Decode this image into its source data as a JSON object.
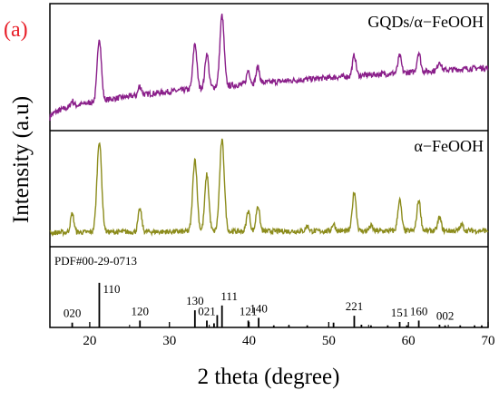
{
  "chart_data": {
    "type": "line",
    "panel_label": "(a)",
    "xlabel": "2 theta (degree)",
    "ylabel": "Intensity (a.u)",
    "xlim": [
      15,
      70
    ],
    "x_ticks": [
      20,
      30,
      40,
      50,
      60,
      70
    ],
    "grid": false,
    "colors": {
      "panel_label": "#e8202a",
      "gqds_series": "#8a1f8a",
      "feooh_series": "#8c8c1c",
      "axes": "#000000"
    },
    "panels": [
      {
        "label": "GQDs/α−FeOOH",
        "series_color": "#8a1f8a",
        "baseline_start": 0.08,
        "baseline_end": 0.52,
        "peaks": [
          {
            "x": 17.8,
            "height": 0.05
          },
          {
            "x": 21.2,
            "height": 0.55
          },
          {
            "x": 26.3,
            "height": 0.08
          },
          {
            "x": 33.2,
            "height": 0.4
          },
          {
            "x": 34.7,
            "height": 0.3
          },
          {
            "x": 36.6,
            "height": 0.62
          },
          {
            "x": 39.9,
            "height": 0.12
          },
          {
            "x": 41.1,
            "height": 0.14
          },
          {
            "x": 53.2,
            "height": 0.18
          },
          {
            "x": 58.9,
            "height": 0.15
          },
          {
            "x": 61.3,
            "height": 0.17
          },
          {
            "x": 63.9,
            "height": 0.08
          }
        ]
      },
      {
        "label": "α−FeOOH",
        "series_color": "#8c8c1c",
        "baseline_start": 0.1,
        "baseline_end": 0.12,
        "peaks": [
          {
            "x": 17.8,
            "height": 0.18
          },
          {
            "x": 21.2,
            "height": 0.88
          },
          {
            "x": 26.3,
            "height": 0.22
          },
          {
            "x": 33.2,
            "height": 0.7
          },
          {
            "x": 34.7,
            "height": 0.55
          },
          {
            "x": 36.6,
            "height": 0.88
          },
          {
            "x": 39.9,
            "height": 0.2
          },
          {
            "x": 41.1,
            "height": 0.25
          },
          {
            "x": 47.3,
            "height": 0.05
          },
          {
            "x": 50.6,
            "height": 0.07
          },
          {
            "x": 53.2,
            "height": 0.38
          },
          {
            "x": 55.3,
            "height": 0.05
          },
          {
            "x": 58.9,
            "height": 0.3
          },
          {
            "x": 61.3,
            "height": 0.3
          },
          {
            "x": 63.9,
            "height": 0.13
          },
          {
            "x": 66.7,
            "height": 0.06
          }
        ]
      }
    ],
    "reference": {
      "title": "PDF#00-29-0713",
      "lines": [
        {
          "x": 17.8,
          "height": 0.07
        },
        {
          "x": 21.2,
          "height": 0.65
        },
        {
          "x": 26.3,
          "height": 0.1
        },
        {
          "x": 33.2,
          "height": 0.25
        },
        {
          "x": 34.7,
          "height": 0.1
        },
        {
          "x": 35.6,
          "height": 0.06
        },
        {
          "x": 36.0,
          "height": 0.18
        },
        {
          "x": 36.6,
          "height": 0.32
        },
        {
          "x": 39.9,
          "height": 0.1
        },
        {
          "x": 41.2,
          "height": 0.14
        },
        {
          "x": 43.1,
          "height": 0.03
        },
        {
          "x": 45.0,
          "height": 0.03
        },
        {
          "x": 47.3,
          "height": 0.03
        },
        {
          "x": 50.6,
          "height": 0.07
        },
        {
          "x": 53.2,
          "height": 0.17
        },
        {
          "x": 54.1,
          "height": 0.04
        },
        {
          "x": 55.3,
          "height": 0.03
        },
        {
          "x": 57.4,
          "height": 0.03
        },
        {
          "x": 58.9,
          "height": 0.08
        },
        {
          "x": 59.8,
          "height": 0.03
        },
        {
          "x": 61.3,
          "height": 0.1
        },
        {
          "x": 63.9,
          "height": 0.04
        },
        {
          "x": 64.6,
          "height": 0.03
        },
        {
          "x": 66.5,
          "height": 0.03
        },
        {
          "x": 68.3,
          "height": 0.03
        },
        {
          "x": 69.2,
          "height": 0.03
        }
      ],
      "labels": [
        {
          "text": "020",
          "x": 17.8
        },
        {
          "text": "110",
          "x": 21.2
        },
        {
          "text": "120",
          "x": 26.3
        },
        {
          "text": "130",
          "x": 33.2
        },
        {
          "text": "021",
          "x": 34.7
        },
        {
          "text": "111",
          "x": 36.6
        },
        {
          "text": "121",
          "x": 39.9
        },
        {
          "text": "140",
          "x": 41.2
        },
        {
          "text": "221",
          "x": 53.2
        },
        {
          "text": "151",
          "x": 58.9
        },
        {
          "text": "160",
          "x": 61.3
        },
        {
          "text": "002",
          "x": 64.6
        }
      ]
    }
  }
}
